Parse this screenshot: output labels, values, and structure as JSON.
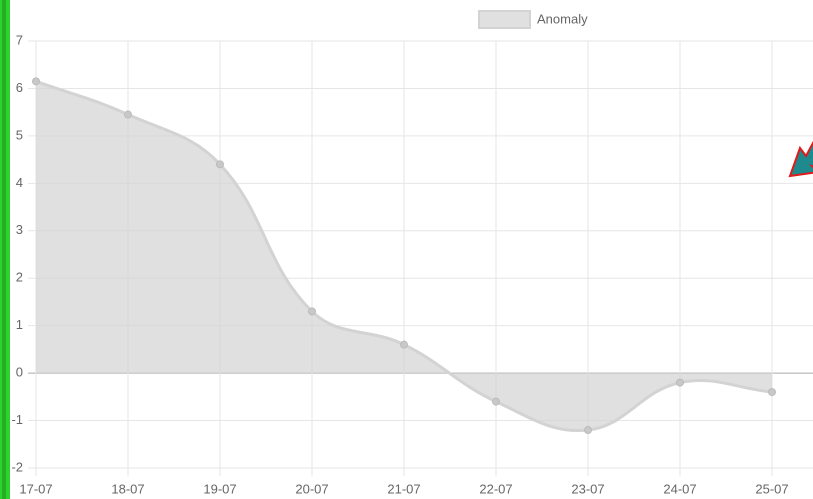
{
  "chart_data": {
    "type": "line",
    "categories": [
      "17-07",
      "18-07",
      "19-07",
      "20-07",
      "21-07",
      "22-07",
      "23-07",
      "24-07",
      "25-07"
    ],
    "series": [
      {
        "name": "Anomaly",
        "color": "#d3d3d3",
        "values": [
          6.15,
          5.45,
          4.4,
          1.3,
          0.6,
          -0.6,
          -1.2,
          -0.2,
          -0.4
        ]
      }
    ],
    "ylim": [
      -2,
      7
    ],
    "yticks": [
      -2,
      -1,
      0,
      1,
      2,
      3,
      4,
      5,
      6,
      7
    ],
    "grid": true,
    "legend": "top"
  }
}
